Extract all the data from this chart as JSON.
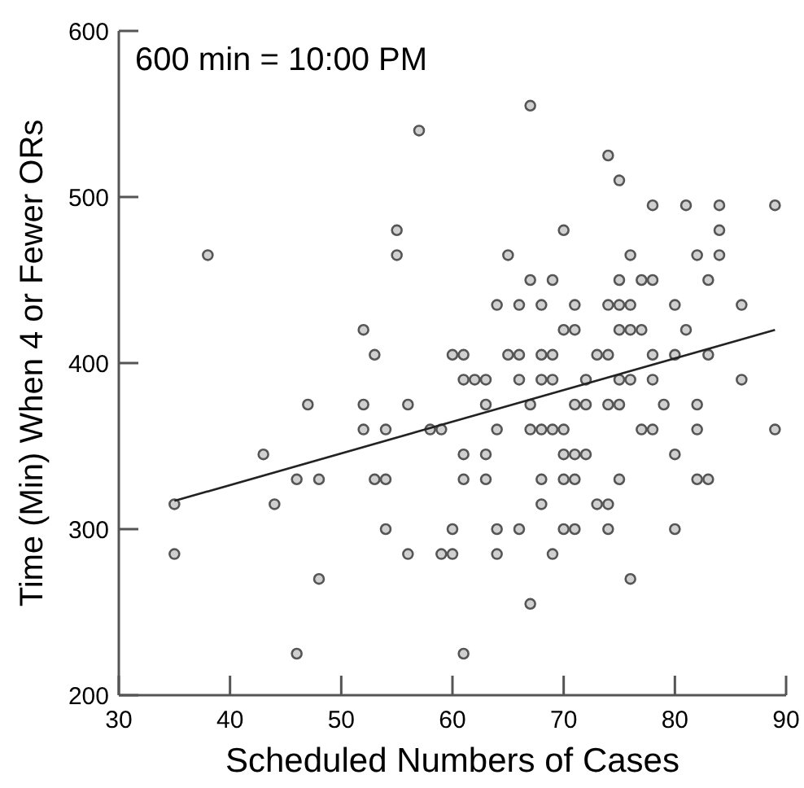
{
  "chart_data": {
    "type": "scatter",
    "xlabel": "Scheduled Numbers of Cases",
    "ylabel": "Time (Min) When 4 or Fewer ORs",
    "annotations": [
      "600 min = 10:00 PM"
    ],
    "xlim": [
      30,
      90
    ],
    "ylim": [
      200,
      600
    ],
    "xticks": [
      30,
      40,
      50,
      60,
      70,
      80,
      90
    ],
    "yticks": [
      200,
      300,
      400,
      500,
      600
    ],
    "grid": false,
    "series": [
      {
        "marker": "circle",
        "color": "#555555",
        "x": [
          57,
          38,
          55,
          55,
          52,
          53,
          60,
          47,
          52,
          56,
          52,
          54,
          58,
          59,
          43,
          46,
          48,
          53,
          54,
          35,
          44,
          54,
          60,
          35,
          56,
          59,
          60,
          48,
          46,
          63,
          67,
          71,
          72,
          74,
          75,
          79,
          82,
          64,
          67,
          68,
          69,
          70,
          77,
          78,
          82,
          89,
          61,
          63,
          70,
          71,
          72,
          80,
          61,
          63,
          68,
          70,
          71,
          75,
          82,
          83,
          68,
          73,
          74,
          64,
          66,
          70,
          71,
          74,
          80,
          64,
          69,
          76,
          67,
          61,
          67,
          74,
          75,
          78,
          81,
          84,
          89,
          70,
          84,
          65,
          76,
          82,
          84,
          67,
          69,
          75,
          77,
          78,
          83,
          64,
          66,
          68,
          71,
          74,
          75,
          76,
          80,
          86,
          70,
          71,
          75,
          76,
          77,
          81,
          61,
          65,
          66,
          68,
          69,
          73,
          74,
          78,
          80,
          83,
          61,
          62,
          63,
          66,
          68,
          69,
          72,
          75,
          76,
          78,
          86
        ],
        "values": [
          540,
          465,
          480,
          465,
          420,
          405,
          405,
          375,
          375,
          375,
          360,
          360,
          360,
          360,
          345,
          330,
          330,
          330,
          330,
          315,
          315,
          300,
          300,
          285,
          285,
          285,
          285,
          270,
          225,
          375,
          375,
          375,
          375,
          375,
          375,
          375,
          375,
          360,
          360,
          360,
          360,
          360,
          360,
          360,
          360,
          360,
          345,
          345,
          345,
          345,
          345,
          345,
          330,
          330,
          330,
          330,
          330,
          330,
          330,
          330,
          315,
          315,
          315,
          300,
          300,
          300,
          300,
          300,
          300,
          285,
          285,
          270,
          255,
          225,
          555,
          525,
          510,
          495,
          495,
          495,
          495,
          480,
          480,
          465,
          465,
          465,
          465,
          450,
          450,
          450,
          450,
          450,
          450,
          435,
          435,
          435,
          435,
          435,
          435,
          435,
          435,
          435,
          420,
          420,
          420,
          420,
          420,
          420,
          405,
          405,
          405,
          405,
          405,
          405,
          405,
          405,
          405,
          405,
          390,
          390,
          390,
          390,
          390,
          390,
          390,
          390,
          390,
          390,
          390
        ]
      },
      {
        "type": "line",
        "marker": "none",
        "color": "#222222",
        "x": [
          35,
          89
        ],
        "values": [
          317,
          420
        ]
      }
    ]
  }
}
